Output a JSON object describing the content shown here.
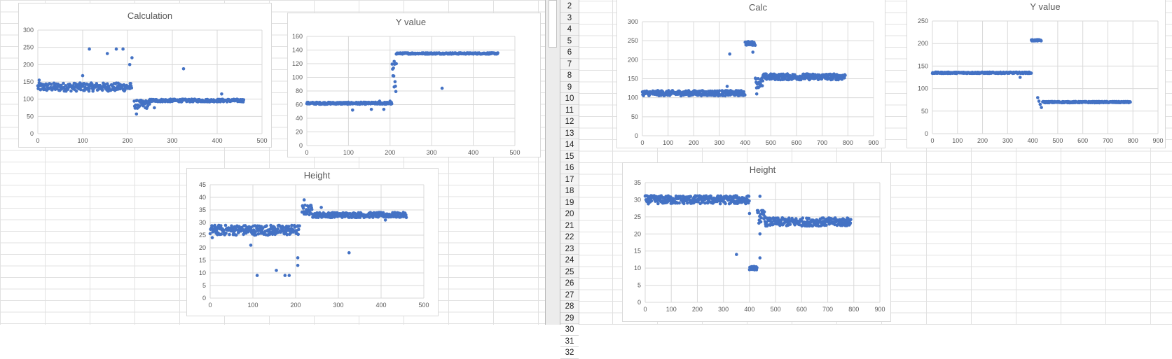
{
  "row_numbers": [
    "2",
    "3",
    "4",
    "5",
    "6",
    "7",
    "8",
    "9",
    "10",
    "11",
    "12",
    "13",
    "14",
    "15",
    "16",
    "17",
    "18",
    "19",
    "20",
    "21",
    "22",
    "23",
    "24",
    "25",
    "26",
    "27",
    "28",
    "29",
    "30",
    "31",
    "32"
  ],
  "chart_data": [
    {
      "id": "calc-left",
      "type": "scatter",
      "title": "Calculation",
      "xlim": [
        0,
        500
      ],
      "ylim": [
        0,
        300
      ],
      "xticks": [
        "0",
        "100",
        "200",
        "300",
        "400",
        "500"
      ],
      "yticks": [
        "0",
        "50",
        "100",
        "150",
        "200",
        "250",
        "300"
      ],
      "series": [
        {
          "color": "#4472c4",
          "segments": [
            {
              "from": 0,
              "to": 210,
              "step": 1,
              "base": 135,
              "jitter": 12
            },
            {
              "from": 215,
              "to": 250,
              "step": 1,
              "base": 85,
              "jitter": 12
            },
            {
              "from": 250,
              "to": 460,
              "step": 1,
              "base": 96,
              "jitter": 4
            }
          ],
          "outliers": [
            [
              3,
              155
            ],
            [
              100,
              168
            ],
            [
              115,
              245
            ],
            [
              155,
              232
            ],
            [
              175,
              245
            ],
            [
              190,
              245
            ],
            [
              205,
              200
            ],
            [
              210,
              220
            ],
            [
              220,
              57
            ],
            [
              325,
              188
            ],
            [
              410,
              115
            ],
            [
              260,
              75
            ]
          ]
        }
      ],
      "grid": true,
      "legend": "none"
    },
    {
      "id": "yvalue-left",
      "type": "scatter",
      "title": "Y value",
      "xlim": [
        0,
        500
      ],
      "ylim": [
        0,
        160
      ],
      "xticks": [
        "0",
        "100",
        "200",
        "300",
        "400",
        "500"
      ],
      "yticks": [
        "0",
        "20",
        "40",
        "60",
        "80",
        "100",
        "120",
        "140",
        "160"
      ],
      "series": [
        {
          "color": "#4472c4",
          "segments": [
            {
              "from": 0,
              "to": 205,
              "step": 1,
              "base": 62,
              "jitter": 1.5
            },
            {
              "from": 205,
              "to": 215,
              "step": 1,
              "base": 100,
              "jitter": 25
            },
            {
              "from": 215,
              "to": 460,
              "step": 1,
              "base": 135,
              "jitter": 1
            }
          ],
          "outliers": [
            [
              110,
              52
            ],
            [
              155,
              53
            ],
            [
              175,
              65
            ],
            [
              185,
              53
            ],
            [
              200,
              65
            ],
            [
              210,
              86
            ],
            [
              325,
              84
            ],
            [
              215,
              120
            ]
          ]
        }
      ],
      "grid": true,
      "legend": "none"
    },
    {
      "id": "height-left",
      "type": "scatter",
      "title": "Height",
      "xlim": [
        0,
        500
      ],
      "ylim": [
        0,
        45
      ],
      "xticks": [
        "0",
        "100",
        "200",
        "300",
        "400",
        "500"
      ],
      "yticks": [
        "0",
        "5",
        "10",
        "15",
        "20",
        "25",
        "30",
        "35",
        "40",
        "45"
      ],
      "series": [
        {
          "color": "#4472c4",
          "segments": [
            {
              "from": 0,
              "to": 210,
              "step": 1,
              "base": 27,
              "jitter": 2
            },
            {
              "from": 215,
              "to": 240,
              "step": 1,
              "base": 35,
              "jitter": 2
            },
            {
              "from": 240,
              "to": 460,
              "step": 1,
              "base": 33,
              "jitter": 1
            }
          ],
          "outliers": [
            [
              5,
              24
            ],
            [
              95,
              21
            ],
            [
              110,
              9
            ],
            [
              155,
              11
            ],
            [
              175,
              9
            ],
            [
              185,
              9
            ],
            [
              205,
              16
            ],
            [
              205,
              13
            ],
            [
              220,
              39
            ],
            [
              325,
              18
            ],
            [
              410,
              31
            ],
            [
              260,
              36
            ]
          ]
        }
      ],
      "grid": true,
      "legend": "none"
    },
    {
      "id": "calc-right",
      "type": "scatter",
      "title": "Calc",
      "xlim": [
        0,
        900
      ],
      "ylim": [
        0,
        300
      ],
      "xticks": [
        "0",
        "100",
        "200",
        "300",
        "400",
        "500",
        "600",
        "700",
        "800",
        "900"
      ],
      "yticks": [
        "0",
        "50",
        "100",
        "150",
        "200",
        "250",
        "300"
      ],
      "series": [
        {
          "color": "#4472c4",
          "segments": [
            {
              "from": 0,
              "to": 400,
              "step": 1.5,
              "base": 112,
              "jitter": 7
            },
            {
              "from": 400,
              "to": 440,
              "step": 1.5,
              "base": 243,
              "jitter": 5
            },
            {
              "from": 440,
              "to": 470,
              "step": 1.5,
              "base": 140,
              "jitter": 14
            },
            {
              "from": 470,
              "to": 790,
              "step": 1.5,
              "base": 155,
              "jitter": 8
            }
          ],
          "outliers": [
            [
              340,
              215
            ],
            [
              430,
              220
            ],
            [
              445,
              110
            ],
            [
              330,
              130
            ]
          ]
        }
      ],
      "grid": true,
      "legend": "none"
    },
    {
      "id": "yvalue-right",
      "type": "scatter",
      "title": "Y value",
      "xlim": [
        0,
        900
      ],
      "ylim": [
        0,
        250
      ],
      "xticks": [
        "0",
        "100",
        "200",
        "300",
        "400",
        "500",
        "600",
        "700",
        "800",
        "900"
      ],
      "yticks": [
        "0",
        "50",
        "100",
        "150",
        "200",
        "250"
      ],
      "series": [
        {
          "color": "#4472c4",
          "segments": [
            {
              "from": 0,
              "to": 395,
              "step": 1.5,
              "base": 135,
              "jitter": 1.5
            },
            {
              "from": 395,
              "to": 435,
              "step": 1.5,
              "base": 207,
              "jitter": 1.5
            },
            {
              "from": 440,
              "to": 790,
              "step": 1.5,
              "base": 70,
              "jitter": 1.5
            }
          ],
          "outliers": [
            [
              350,
              125
            ],
            [
              420,
              80
            ],
            [
              425,
              72
            ],
            [
              430,
              65
            ],
            [
              435,
              58
            ]
          ]
        }
      ],
      "grid": true,
      "legend": "none"
    },
    {
      "id": "height-right",
      "type": "scatter",
      "title": "Height",
      "xlim": [
        0,
        900
      ],
      "ylim": [
        0,
        35
      ],
      "xticks": [
        "0",
        "100",
        "200",
        "300",
        "400",
        "500",
        "600",
        "700",
        "800",
        "900"
      ],
      "yticks": [
        "0",
        "5",
        "10",
        "15",
        "20",
        "25",
        "30",
        "35"
      ],
      "series": [
        {
          "color": "#4472c4",
          "segments": [
            {
              "from": 0,
              "to": 400,
              "step": 1.5,
              "base": 30,
              "jitter": 1.2
            },
            {
              "from": 400,
              "to": 430,
              "step": 1.5,
              "base": 10,
              "jitter": 0.5
            },
            {
              "from": 430,
              "to": 460,
              "step": 1.5,
              "base": 25,
              "jitter": 2
            },
            {
              "from": 460,
              "to": 790,
              "step": 1.5,
              "base": 23.5,
              "jitter": 1.2
            }
          ],
          "outliers": [
            [
              350,
              14
            ],
            [
              440,
              31
            ],
            [
              440,
              13
            ],
            [
              400,
              26
            ],
            [
              440,
              20
            ]
          ]
        }
      ],
      "grid": true,
      "legend": "none"
    }
  ]
}
